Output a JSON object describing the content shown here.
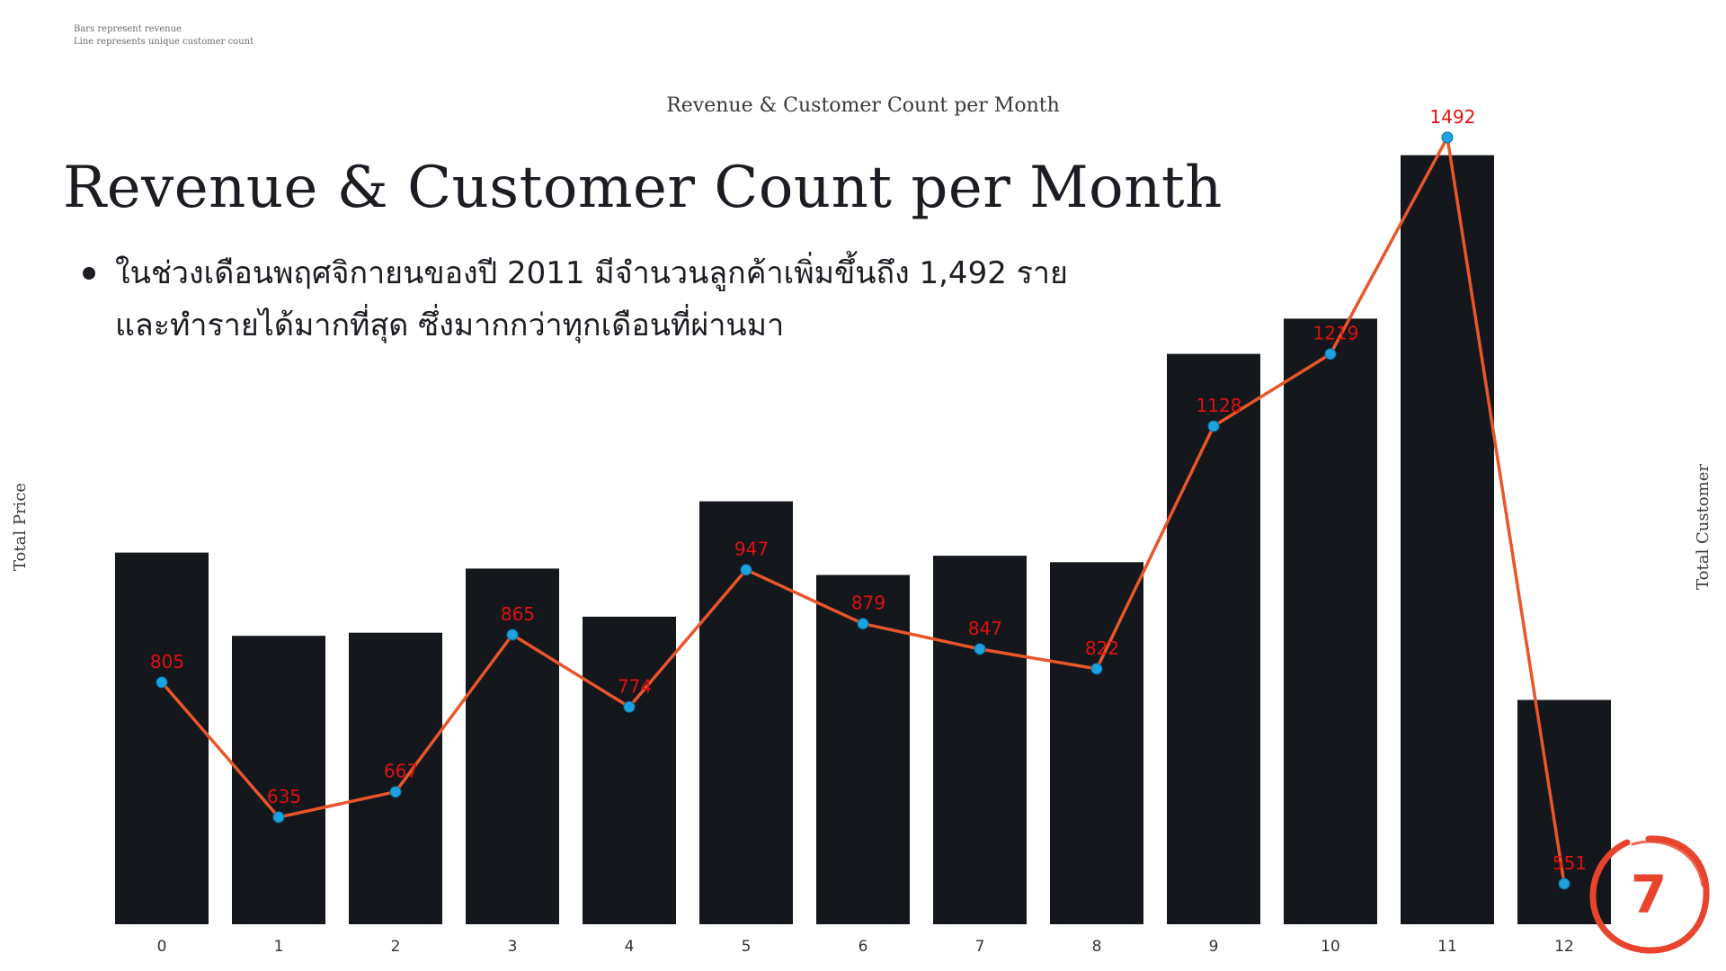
{
  "notes": [
    "Bars represent revenue",
    "Line represents unique customer count"
  ],
  "slide": {
    "title": "Revenue & Customer Count per Month",
    "bullet": [
      "ในช่วงเดือนพฤศจิกายนของปี 2011 มีจำนวนลูกค้าเพิ่มขึ้นถึง 1,492 ราย",
      "และทำรายได้มากที่สุด ซึ่งมากกว่าทุกเดือนที่ผ่านมา"
    ],
    "page_number": "7",
    "accent_color": "#e8432d"
  },
  "chart_data": {
    "type": "bar",
    "title": "Revenue & Customer Count per Month",
    "xlabel": "",
    "ylabel": "Total Price",
    "y2label": "Total Customer",
    "categories": [
      "0",
      "1",
      "2",
      "3",
      "4",
      "5",
      "6",
      "7",
      "8",
      "9",
      "10",
      "11",
      "12"
    ],
    "series": [
      {
        "type": "bar",
        "values": [
          0.58,
          0.45,
          0.455,
          0.555,
          0.48,
          0.66,
          0.545,
          0.575,
          0.565,
          0.89,
          0.945,
          1.2,
          0.35
        ],
        "color": "#14171c"
      },
      {
        "type": "line",
        "values": [
          805,
          635,
          667,
          865,
          774,
          947,
          879,
          847,
          822,
          1128,
          1219,
          1492,
          551
        ],
        "color": "#e8562a",
        "marker_color": "#1aa3e0",
        "label_color": "#e01010"
      }
    ],
    "ylim": [
      0,
      1.25
    ],
    "y2lim": [
      500,
      1510
    ],
    "grid": false,
    "show_y_ticks": false
  }
}
